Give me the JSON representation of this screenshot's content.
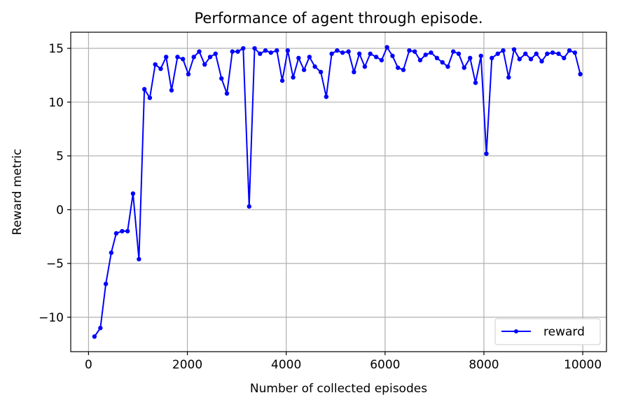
{
  "chart_data": {
    "type": "line",
    "title": "Performance of agent through episode.",
    "xlabel": "Number of collected episodes",
    "ylabel": "Reward metric",
    "xlim": [
      -360,
      10480
    ],
    "ylim": [
      -13.2,
      16.5
    ],
    "xticks": [
      0,
      2000,
      4000,
      6000,
      8000,
      10000
    ],
    "yticks": [
      -10,
      -5,
      0,
      5,
      10,
      15
    ],
    "ytick_labels": [
      "−10",
      "−5",
      "0",
      "5",
      "10",
      "15"
    ],
    "grid": true,
    "legend_position": "lower-right",
    "series": [
      {
        "name": "reward",
        "color": "#0000ff",
        "marker": "circle",
        "x": [
          120,
          240,
          350,
          460,
          560,
          680,
          790,
          900,
          1020,
          1130,
          1240,
          1350,
          1460,
          1570,
          1680,
          1800,
          1910,
          2020,
          2130,
          2240,
          2350,
          2460,
          2570,
          2690,
          2800,
          2910,
          3020,
          3130,
          3250,
          3360,
          3470,
          3580,
          3690,
          3810,
          3920,
          4030,
          4140,
          4250,
          4360,
          4470,
          4580,
          4700,
          4810,
          4920,
          5030,
          5140,
          5260,
          5370,
          5480,
          5590,
          5700,
          5820,
          5930,
          6040,
          6150,
          6260,
          6370,
          6490,
          6600,
          6710,
          6820,
          6930,
          7050,
          7160,
          7270,
          7380,
          7490,
          7600,
          7720,
          7830,
          7940,
          8050,
          8160,
          8280,
          8390,
          8500,
          8610,
          8720,
          8840,
          8950,
          9060,
          9170,
          9280,
          9390,
          9510,
          9620,
          9730,
          9840,
          9950
        ],
        "y": [
          -11.8,
          -11.0,
          -6.9,
          -4.0,
          -2.2,
          -2.0,
          -2.0,
          1.5,
          -4.6,
          11.2,
          10.4,
          13.5,
          13.1,
          14.2,
          11.1,
          14.2,
          14.0,
          12.6,
          14.2,
          14.7,
          13.5,
          14.2,
          14.5,
          12.2,
          10.8,
          14.7,
          14.7,
          15.0,
          0.3,
          15.0,
          14.5,
          14.8,
          14.6,
          14.8,
          12.0,
          14.8,
          12.3,
          14.1,
          13.0,
          14.2,
          13.3,
          12.8,
          10.5,
          14.5,
          14.8,
          14.6,
          14.7,
          12.8,
          14.5,
          13.3,
          14.5,
          14.2,
          13.9,
          15.1,
          14.3,
          13.2,
          13.0,
          14.8,
          14.7,
          13.9,
          14.4,
          14.6,
          14.1,
          13.7,
          13.3,
          14.7,
          14.5,
          13.2,
          14.1,
          11.8,
          14.3,
          5.2,
          14.1,
          14.5,
          14.8,
          12.3,
          14.9,
          14.0,
          14.5,
          14.0,
          14.5,
          13.8,
          14.5,
          14.6,
          14.5,
          14.1,
          14.8,
          14.6,
          12.6
        ]
      }
    ]
  }
}
